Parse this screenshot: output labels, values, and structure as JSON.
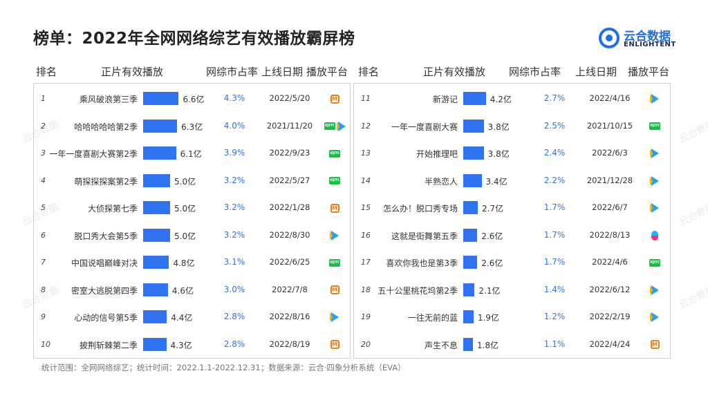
{
  "title": "榜单：2022年全网网络综艺有效播放霸屏榜",
  "logo": {
    "cn": "云合数据",
    "en": "ENLIGHTENT"
  },
  "headers": {
    "rank": "排名",
    "name": "正片有效播放",
    "share": "网综市占率",
    "date": "上线日期",
    "platform": "播放平台"
  },
  "footer": "统计范围：全网网络综艺；统计时间：2022.1.1-2022.12.31；数据来源：云合·四象分析系统（EVA）",
  "watermark": "云合数据",
  "chart_data": {
    "type": "bar",
    "unit": "亿",
    "series": [
      {
        "values": [
          6.6,
          6.3,
          6.1,
          5.0,
          5.0,
          5.0,
          4.8,
          4.6,
          4.4,
          4.3,
          4.2,
          3.8,
          3.8,
          3.4,
          2.7,
          2.6,
          2.6,
          2.1,
          1.9,
          1.8
        ]
      }
    ],
    "categories": [
      "乘风破浪第三季",
      "哈哈哈哈哈第2季",
      "一年一度喜剧大赛第2季",
      "萌探探探案第2季",
      "大侦探第七季",
      "脱口秀大会第5季",
      "中国说唱巅峰对决",
      "密室大逃脱第四季",
      "心动的信号第5季",
      "披荆斩棘第二季",
      "新游记",
      "一年一度喜剧大赛",
      "开始推理吧",
      "半熟恋人",
      "怎么办！脱口秀专场",
      "这就是街舞第五季",
      "喜欢你我也是第3季",
      "五十公里桃花坞第2季",
      "一往无前的蓝",
      "声生不息"
    ],
    "rows": [
      {
        "rank": "1",
        "name": "乘风破浪第三季",
        "value": 6.6,
        "label": "6.6亿",
        "share": "4.3%",
        "date": "2022/5/20",
        "platforms": [
          "mango"
        ]
      },
      {
        "rank": "2",
        "name": "哈哈哈哈哈第2季",
        "value": 6.3,
        "label": "6.3亿",
        "share": "4.0%",
        "date": "2021/11/20",
        "platforms": [
          "iqiyi",
          "tencent"
        ]
      },
      {
        "rank": "3",
        "name": "一年一度喜剧大赛第2季",
        "value": 6.1,
        "label": "6.1亿",
        "share": "3.9%",
        "date": "2022/9/23",
        "platforms": [
          "iqiyi"
        ]
      },
      {
        "rank": "4",
        "name": "萌探探探案第2季",
        "value": 5.0,
        "label": "5.0亿",
        "share": "3.2%",
        "date": "2022/5/27",
        "platforms": [
          "iqiyi"
        ]
      },
      {
        "rank": "5",
        "name": "大侦探第七季",
        "value": 5.0,
        "label": "5.0亿",
        "share": "3.2%",
        "date": "2022/1/28",
        "platforms": [
          "mango"
        ]
      },
      {
        "rank": "6",
        "name": "脱口秀大会第5季",
        "value": 5.0,
        "label": "5.0亿",
        "share": "3.2%",
        "date": "2022/8/30",
        "platforms": [
          "tencent"
        ]
      },
      {
        "rank": "7",
        "name": "中国说唱巅峰对决",
        "value": 4.8,
        "label": "4.8亿",
        "share": "3.1%",
        "date": "2022/6/25",
        "platforms": [
          "iqiyi"
        ]
      },
      {
        "rank": "8",
        "name": "密室大逃脱第四季",
        "value": 4.6,
        "label": "4.6亿",
        "share": "3.0%",
        "date": "2022/7/8",
        "platforms": [
          "mango"
        ]
      },
      {
        "rank": "9",
        "name": "心动的信号第5季",
        "value": 4.4,
        "label": "4.4亿",
        "share": "2.8%",
        "date": "2022/8/16",
        "platforms": [
          "tencent"
        ]
      },
      {
        "rank": "10",
        "name": "披荆斩棘第二季",
        "value": 4.3,
        "label": "4.3亿",
        "share": "2.8%",
        "date": "2022/8/19",
        "platforms": [
          "mango"
        ]
      },
      {
        "rank": "11",
        "name": "新游记",
        "value": 4.2,
        "label": "4.2亿",
        "share": "2.7%",
        "date": "2022/4/16",
        "platforms": [
          "tencent"
        ]
      },
      {
        "rank": "12",
        "name": "一年一度喜剧大赛",
        "value": 3.8,
        "label": "3.8亿",
        "share": "2.5%",
        "date": "2021/10/15",
        "platforms": [
          "iqiyi"
        ]
      },
      {
        "rank": "13",
        "name": "开始推理吧",
        "value": 3.8,
        "label": "3.8亿",
        "share": "2.4%",
        "date": "2022/6/3",
        "platforms": [
          "tencent"
        ]
      },
      {
        "rank": "14",
        "name": "半熟恋人",
        "value": 3.4,
        "label": "3.4亿",
        "share": "2.2%",
        "date": "2021/12/28",
        "platforms": [
          "tencent"
        ]
      },
      {
        "rank": "15",
        "name": "怎么办！脱口秀专场",
        "value": 2.7,
        "label": "2.7亿",
        "share": "1.7%",
        "date": "2022/6/7",
        "platforms": [
          "tencent"
        ]
      },
      {
        "rank": "16",
        "name": "这就是街舞第五季",
        "value": 2.6,
        "label": "2.6亿",
        "share": "1.7%",
        "date": "2022/8/13",
        "platforms": [
          "youku"
        ]
      },
      {
        "rank": "17",
        "name": "喜欢你我也是第3季",
        "value": 2.6,
        "label": "2.6亿",
        "share": "1.7%",
        "date": "2022/4/6",
        "platforms": [
          "iqiyi"
        ]
      },
      {
        "rank": "18",
        "name": "五十公里桃花坞第2季",
        "value": 2.1,
        "label": "2.1亿",
        "share": "1.4%",
        "date": "2022/6/12",
        "platforms": [
          "tencent"
        ]
      },
      {
        "rank": "19",
        "name": "一往无前的蓝",
        "value": 1.9,
        "label": "1.9亿",
        "share": "1.2%",
        "date": "2022/2/19",
        "platforms": [
          "tencent"
        ]
      },
      {
        "rank": "20",
        "name": "声生不息",
        "value": 1.8,
        "label": "1.8亿",
        "share": "1.1%",
        "date": "2022/4/24",
        "platforms": [
          "mango"
        ]
      }
    ],
    "colors": {
      "bar": "#2f73f0",
      "share_text": "#2f73f0",
      "title": "#222222"
    },
    "platform_icons": {
      "mango": "mango-tv-icon",
      "iqiyi": "iqiyi-icon",
      "tencent": "tencent-video-icon",
      "youku": "youku-icon"
    },
    "grid": false
  }
}
